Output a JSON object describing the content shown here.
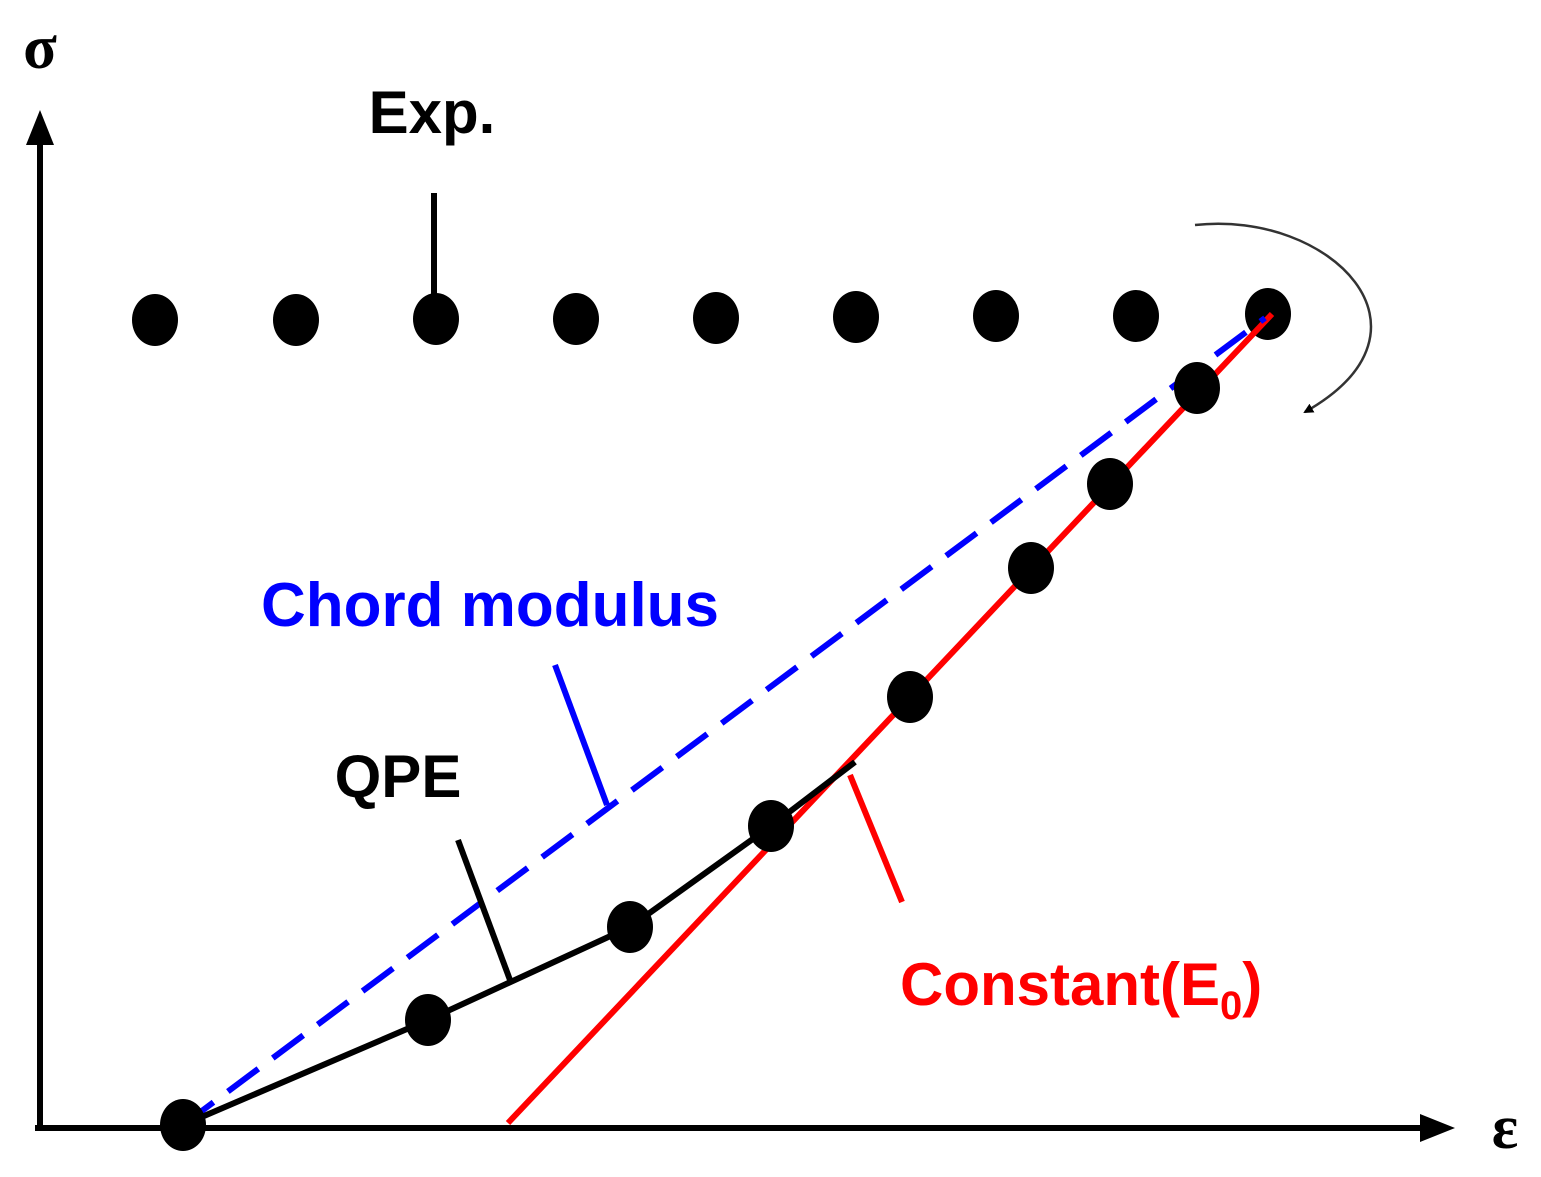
{
  "axes": {
    "y_label": "σ",
    "x_label": "ε"
  },
  "labels": {
    "experiment": "Exp.",
    "chord": "Chord modulus",
    "qpe": "QPE",
    "constant": {
      "text": "Constant(E",
      "subscript": "0",
      "close": ")"
    }
  }
}
